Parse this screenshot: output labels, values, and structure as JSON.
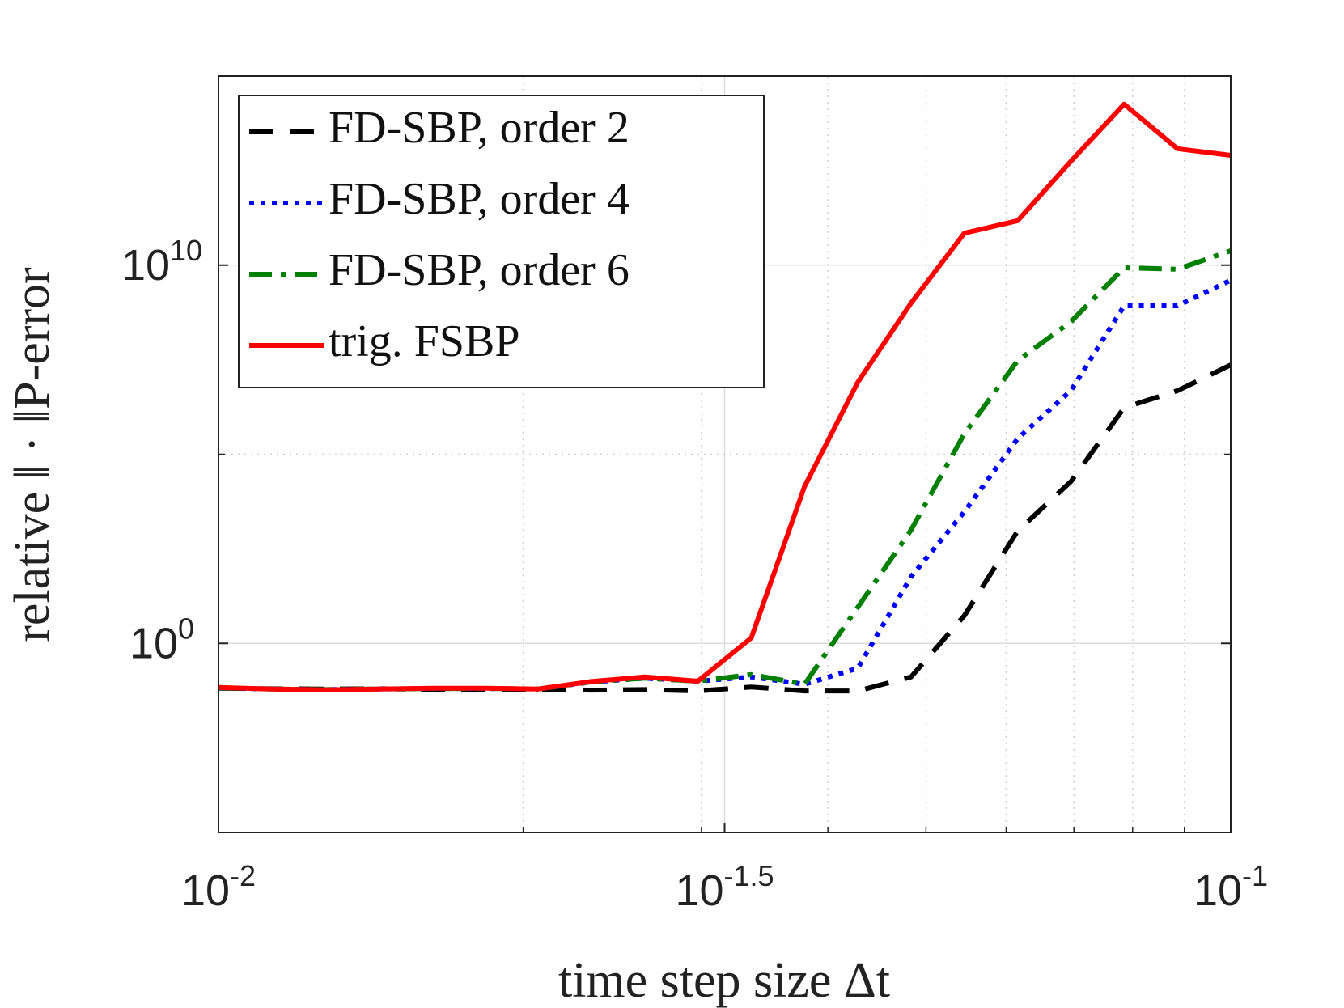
{
  "chart_data": {
    "type": "line",
    "xlabel": "time step size Δt",
    "ylabel": "relative ‖ · ‖P-error",
    "xscale": "log",
    "yscale": "log",
    "xlim": [
      0.01,
      0.1
    ],
    "ylim": [
      1e-05,
      1000000000000000.0
    ],
    "xticks": [
      {
        "value": 0.01,
        "label": "10",
        "exponent": "-2"
      },
      {
        "value": 0.031623,
        "label": "10",
        "exponent": "-1.5"
      },
      {
        "value": 0.1,
        "label": "10",
        "exponent": "-1"
      }
    ],
    "xminorticks": [
      0.02,
      0.03,
      0.04,
      0.05,
      0.06,
      0.07,
      0.08,
      0.09
    ],
    "yticks": [
      {
        "value": 1,
        "label": "10",
        "exponent": "0"
      },
      {
        "value": 10000000000,
        "label": "10",
        "exponent": "10"
      }
    ],
    "yminorticks": [
      100000
    ],
    "grid": true,
    "legend": "upper left",
    "x": [
      0.01,
      0.01129,
      0.01274,
      0.01438,
      0.01624,
      0.01833,
      0.02069,
      0.02336,
      0.02637,
      0.02976,
      0.0336,
      0.03793,
      0.04281,
      0.04833,
      0.05456,
      0.06159,
      0.06952,
      0.07848,
      0.08859,
      0.1
    ],
    "series": [
      {
        "name": "FD-SBP, order 2",
        "color": "#000000",
        "dash": "dashed",
        "values": [
          0.065,
          0.063,
          0.062,
          0.063,
          0.061,
          0.06,
          0.061,
          0.058,
          0.06,
          0.055,
          0.07,
          0.055,
          0.055,
          0.13,
          5.4,
          940,
          19000,
          1700000,
          4800000,
          23000000
        ]
      },
      {
        "name": "FD-SBP, order 4",
        "color": "#0000ff",
        "dash": "dotted",
        "values": [
          0.066,
          0.062,
          0.06,
          0.062,
          0.064,
          0.064,
          0.062,
          0.095,
          0.12,
          0.1,
          0.13,
          0.083,
          0.22,
          58,
          3000,
          260000,
          4800000,
          840000000,
          840000000,
          4000000000
        ]
      },
      {
        "name": "FD-SBP, order 6",
        "color": "#008000",
        "dash": "dashdot",
        "values": [
          0.067,
          0.062,
          0.06,
          0.062,
          0.064,
          0.064,
          0.062,
          0.096,
          0.12,
          0.1,
          0.15,
          0.083,
          9,
          1000,
          350000,
          30000000,
          320000000,
          8500000000,
          7800000000,
          24000000000
        ]
      },
      {
        "name": "trig. FSBP",
        "color": "#ff0000",
        "dash": "solid",
        "values": [
          0.068,
          0.062,
          0.059,
          0.062,
          0.065,
          0.065,
          0.062,
          0.098,
          0.13,
          0.1,
          1.4,
          14000,
          8000000,
          1000000000,
          70000000000,
          150000000000,
          5600000000000,
          180000000000000,
          12000000000000,
          8000000000000
        ]
      }
    ]
  }
}
